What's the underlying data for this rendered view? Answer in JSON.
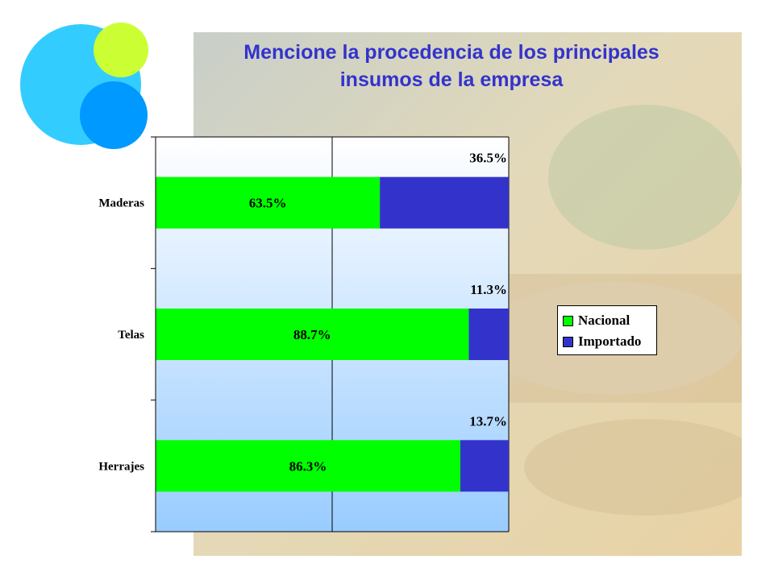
{
  "slide": {
    "title_line1": "Mencione la procedencia de los principales",
    "title_line2": "insumos de la empresa"
  },
  "colors": {
    "nacional": "#00ff00",
    "importado": "#3333cc",
    "title": "#3333cc",
    "plot_top": "#ffffff",
    "plot_bottom": "#99ccff"
  },
  "chart_data": {
    "type": "bar",
    "orientation": "horizontal",
    "stacked": true,
    "categories": [
      "Maderas",
      "Telas",
      "Herrajes"
    ],
    "series": [
      {
        "name": "Nacional",
        "values": [
          63.5,
          88.7,
          86.3
        ],
        "labels": [
          "63.5%",
          "88.7%",
          "86.3%"
        ]
      },
      {
        "name": "Importado",
        "values": [
          36.5,
          11.3,
          13.7
        ],
        "labels": [
          "36.5%",
          "11.3%",
          "13.7%"
        ]
      }
    ],
    "xlim": [
      0,
      100
    ],
    "unit": "%",
    "grid": true,
    "legend_position": "right"
  }
}
